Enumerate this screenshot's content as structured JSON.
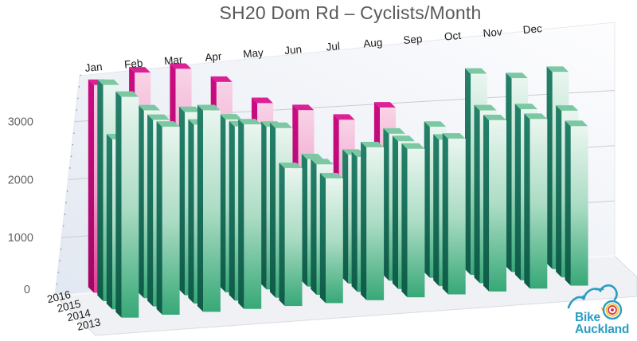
{
  "title": "SH20 Dom Rd – Cyclists/Month",
  "chart_data": {
    "type": "bar",
    "projection": "3d-perspective",
    "title": "SH20 Dom Rd – Cyclists/Month",
    "categories": [
      "Jan",
      "Feb",
      "Mar",
      "Apr",
      "May",
      "Jun",
      "Jul",
      "Aug",
      "Sep",
      "Oct",
      "Nov",
      "Dec"
    ],
    "series": [
      {
        "name": "2016",
        "palette": "pink",
        "values": [
          3600,
          3800,
          3850,
          3600,
          3200,
          3050,
          2850,
          3050,
          null,
          null,
          null,
          null
        ]
      },
      {
        "name": "2015",
        "palette": "green",
        "values": [
          3650,
          3200,
          3150,
          3000,
          2850,
          2250,
          2300,
          2650,
          2750,
          3700,
          3600,
          3700
        ]
      },
      {
        "name": "2014",
        "palette": "green",
        "values": [
          2800,
          3100,
          3000,
          2950,
          2900,
          2250,
          2350,
          2600,
          2600,
          3100,
          3100,
          3050
        ]
      },
      {
        "name": "2013",
        "palette": "green",
        "values": [
          3550,
          3050,
          3300,
          3050,
          2300,
          2100,
          2600,
          2550,
          2700,
          3000,
          3000,
          2850
        ]
      }
    ],
    "series_order": "back-to-front",
    "depth_axis_labels_back_to_front": [
      "2016",
      "2015",
      "2014",
      "2013"
    ],
    "yticks": [
      0,
      1000,
      2000,
      3000
    ],
    "ylim": [
      0,
      4200
    ],
    "xlabel": "",
    "ylabel": "",
    "legend": "none",
    "grid": true
  },
  "colors": {
    "title_text": "#58595b",
    "axis_text": "#636363",
    "label_text": "#1a1a1a",
    "gridline": "#c9ccd4",
    "wall_dark": "#e2e8f1",
    "wall_light": "#fdfdfe",
    "floor_fill": "#f0f1f5",
    "floor_edge": "#d9dce2",
    "tick_dot": "#9aa0a8",
    "pink": {
      "face": [
        "#f8d3e6",
        "#f0a2cd",
        "#e23b94"
      ],
      "side": [
        "#cb0c82",
        "#a10665"
      ],
      "top": "#dc2095"
    },
    "green": {
      "face": [
        "#eaf6f0",
        "#abdcc4",
        "#37a877"
      ],
      "side": [
        "#25816a",
        "#0e5b48"
      ],
      "top": "#7cc8a2"
    }
  },
  "logo": {
    "line1": "Bike",
    "line2": "Auckland",
    "color": "#2b9dc2",
    "wheel_rings": {
      "outer": "#2b9dc2",
      "yellow": "#ecc23d",
      "red": "#e2403e",
      "hub": "#cb2257"
    }
  }
}
